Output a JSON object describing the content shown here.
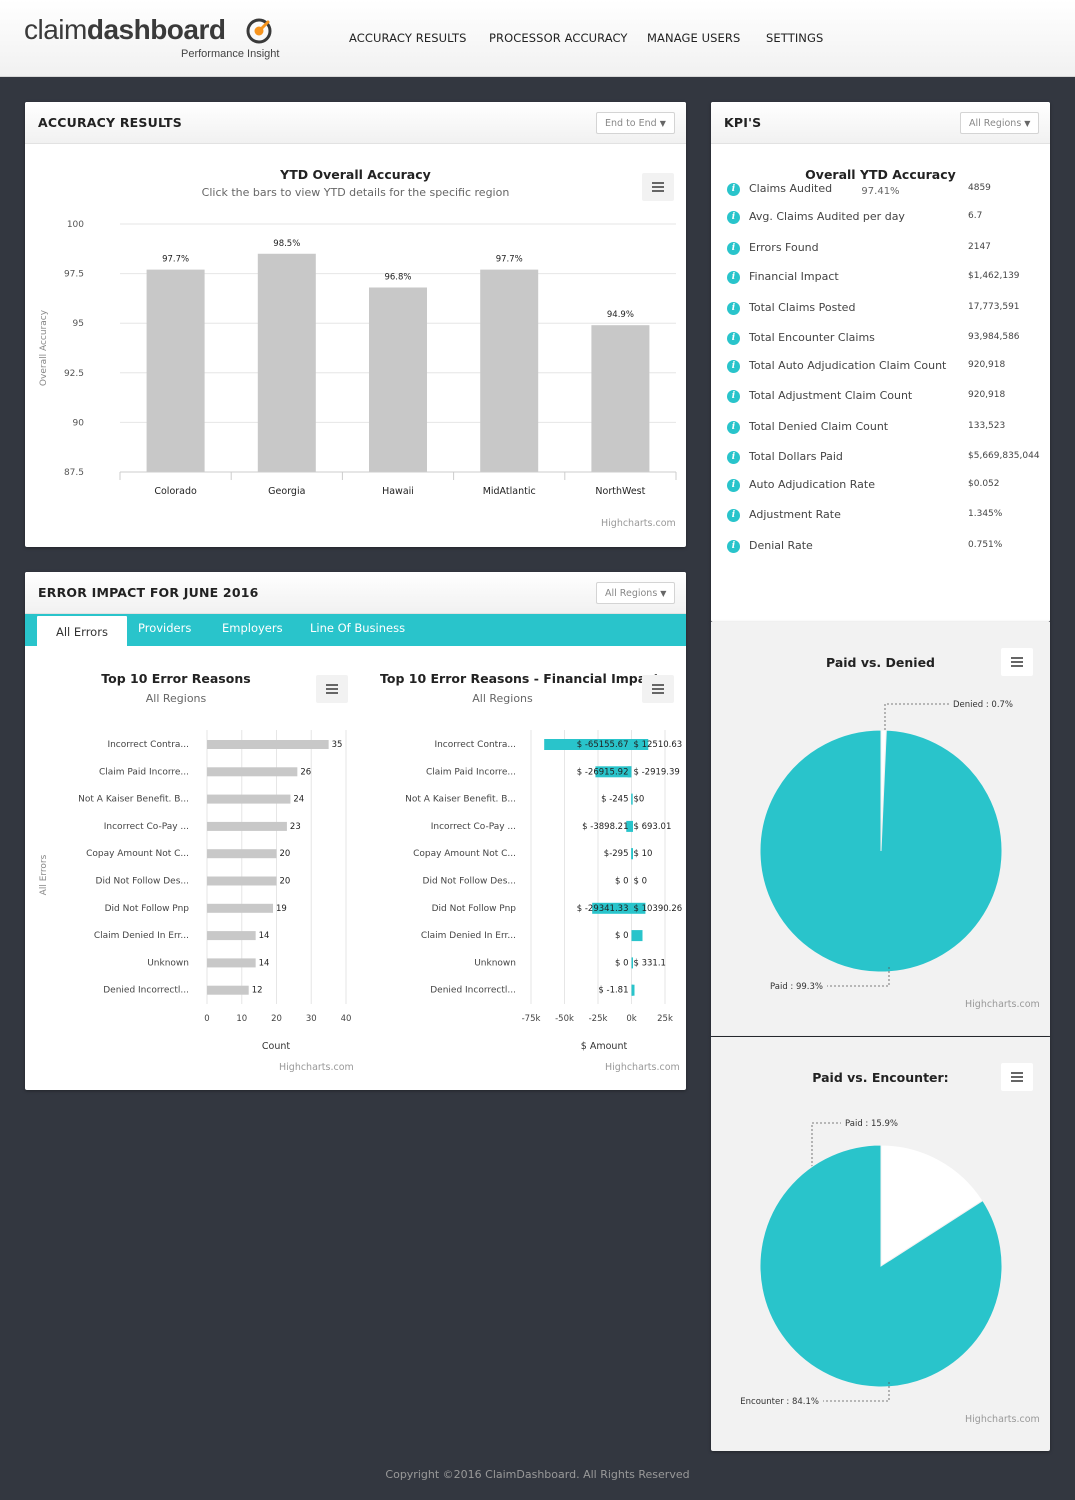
{
  "brand": {
    "name_thin": "claim",
    "name_bold": "dashboard",
    "tagline": "Performance Insight",
    "accent": "#f7941d"
  },
  "nav": [
    {
      "label": "ACCURACY RESULTS"
    },
    {
      "label": "PROCESSOR ACCURACY"
    },
    {
      "label": "MANAGE USERS"
    },
    {
      "label": "SETTINGS"
    }
  ],
  "colors": {
    "teal": "#29c4cb",
    "bar_gray": "#c8c8c8",
    "background": "#333740"
  },
  "accuracy": {
    "title": "ACCURACY RESULTS",
    "dropdown": "End to End",
    "menu_icon": "hamburger-icon",
    "credit": "Highcharts.com",
    "chart_data": {
      "type": "bar",
      "title": "YTD Overall Accuracy",
      "subtitle": "Click the bars to view YTD details for the specific region",
      "ylabel": "Overall Accuracy",
      "ylim": [
        87.5,
        100
      ],
      "yticks": [
        "100",
        "97.5",
        "95",
        "92.5",
        "90",
        "87.5"
      ],
      "categories": [
        "Colorado",
        "Georgia",
        "Hawaii",
        "MidAtlantic",
        "NorthWest"
      ],
      "values": [
        97.7,
        98.5,
        96.8,
        97.7,
        94.9
      ],
      "data_labels": [
        "97.7%",
        "98.5%",
        "96.8%",
        "97.7%",
        "94.9%"
      ]
    }
  },
  "kpi": {
    "title": "KPI'S",
    "dropdown": "All Regions",
    "overall_title": "Overall YTD Accuracy",
    "overall_value": "97.41%",
    "items": [
      {
        "label": "Claims Audited",
        "value": "4859"
      },
      {
        "label": "Avg. Claims Audited per day",
        "value": "6.7"
      },
      {
        "label": "Errors Found",
        "value": "2147"
      },
      {
        "label": "Financial Impact",
        "value": "$1,462,139"
      },
      {
        "label": "Total Claims Posted",
        "value": "17,773,591"
      },
      {
        "label": "Total Encounter Claims",
        "value": "93,984,586"
      },
      {
        "label": "Total Auto Adjudication Claim Count",
        "value": "920,918"
      },
      {
        "label": "Total Adjustment Claim Count",
        "value": "920,918"
      },
      {
        "label": "Total Denied Claim Count",
        "value": "133,523"
      },
      {
        "label": "Total Dollars Paid",
        "value": "$5,669,835,044"
      },
      {
        "label": "Auto Adjudication Rate",
        "value": "$0.052"
      },
      {
        "label": "Adjustment Rate",
        "value": "1.345%"
      },
      {
        "label": "Denial Rate",
        "value": "0.751%"
      }
    ]
  },
  "error_impact": {
    "title": "ERROR IMPACT FOR JUNE 2016",
    "dropdown": "All Regions",
    "tabs": [
      {
        "label": "All Errors"
      },
      {
        "label": "Providers"
      },
      {
        "label": "Employers"
      },
      {
        "label": "Line Of Business"
      }
    ],
    "credit": "Highcharts.com",
    "count_chart": {
      "type": "bar",
      "title": "Top 10 Error Reasons",
      "subtitle": "All Regions",
      "ylabel": "All Errors",
      "xlabel": "Count",
      "xlim": [
        0,
        40
      ],
      "ticks": [
        "0",
        "10",
        "20",
        "30",
        "40"
      ],
      "categories": [
        "Incorrect Contra...",
        "Claim Paid Incorre...",
        "Not A Kaiser Benefit.  B...",
        "Incorrect Co-Pay ...",
        "Copay Amount Not C...",
        "Did Not Follow Des...",
        "Did Not Follow Pnp",
        "Claim Denied In Err...",
        "Unknown",
        "Denied Incorrectl..."
      ],
      "values": [
        35,
        26,
        24,
        23,
        20,
        20,
        19,
        14,
        14,
        12
      ]
    },
    "impact_chart": {
      "type": "bar",
      "title": "Top 10 Error Reasons - Financial Impact",
      "subtitle": "All Regions",
      "xlabel": "$ Amount",
      "xlim": [
        -75000,
        25000
      ],
      "ticks": [
        "-75k",
        "-50k",
        "-25k",
        "0k",
        "25k"
      ],
      "categories": [
        "Incorrect Contra...",
        "Claim Paid Incorre...",
        "Not A Kaiser Benefit.  B...",
        "Incorrect Co-Pay ...",
        "Copay Amount Not C...",
        "Did Not Follow Des...",
        "Did Not Follow Pnp",
        "Claim Denied In Err...",
        "Unknown",
        "Denied Incorrectl..."
      ],
      "negative": [
        -65155.67,
        -26915.92,
        -245,
        -3898.21,
        -295,
        0,
        -29341.33,
        0,
        0,
        -1.81
      ],
      "positive": [
        12510.63,
        -2919.39,
        0,
        693.01,
        10,
        0,
        10390.26,
        0,
        331.1,
        0
      ],
      "negative_labels": [
        "$ -65155.67",
        "$ -26915.92",
        "$ -245",
        "$ -3898.21",
        "$-295",
        "$ 0",
        "$ -29341.33",
        "$ 0",
        "$ 0",
        "$ -1.81"
      ],
      "positive_labels": [
        "$ 12510.63",
        "$ -2919.39",
        "$0",
        "$ 693.01",
        "$ 10",
        "$ 0",
        "$ 10390.26",
        "",
        "$ 331.1",
        ""
      ]
    }
  },
  "paid_denied": {
    "credit": "Highcharts.com",
    "chart_data": {
      "type": "pie",
      "title": "Paid vs. Denied",
      "slices": [
        {
          "name": "Denied",
          "value": 0.7,
          "label": "Denied : 0.7%",
          "color": "#ffffff"
        },
        {
          "name": "Paid",
          "value": 99.3,
          "label": "Paid : 99.3%",
          "color": "#29c4cb"
        }
      ]
    }
  },
  "paid_encounter": {
    "credit": "Highcharts.com",
    "chart_data": {
      "type": "pie",
      "title": "Paid vs. Encounter:",
      "slices": [
        {
          "name": "Paid",
          "value": 15.9,
          "label": "Paid : 15.9%",
          "color": "#ffffff"
        },
        {
          "name": "Encounter",
          "value": 84.1,
          "label": "Encounter : 84.1%",
          "color": "#29c4cb"
        }
      ]
    }
  },
  "footer": "Copyright ©2016 ClaimDashboard. All Rights Reserved"
}
